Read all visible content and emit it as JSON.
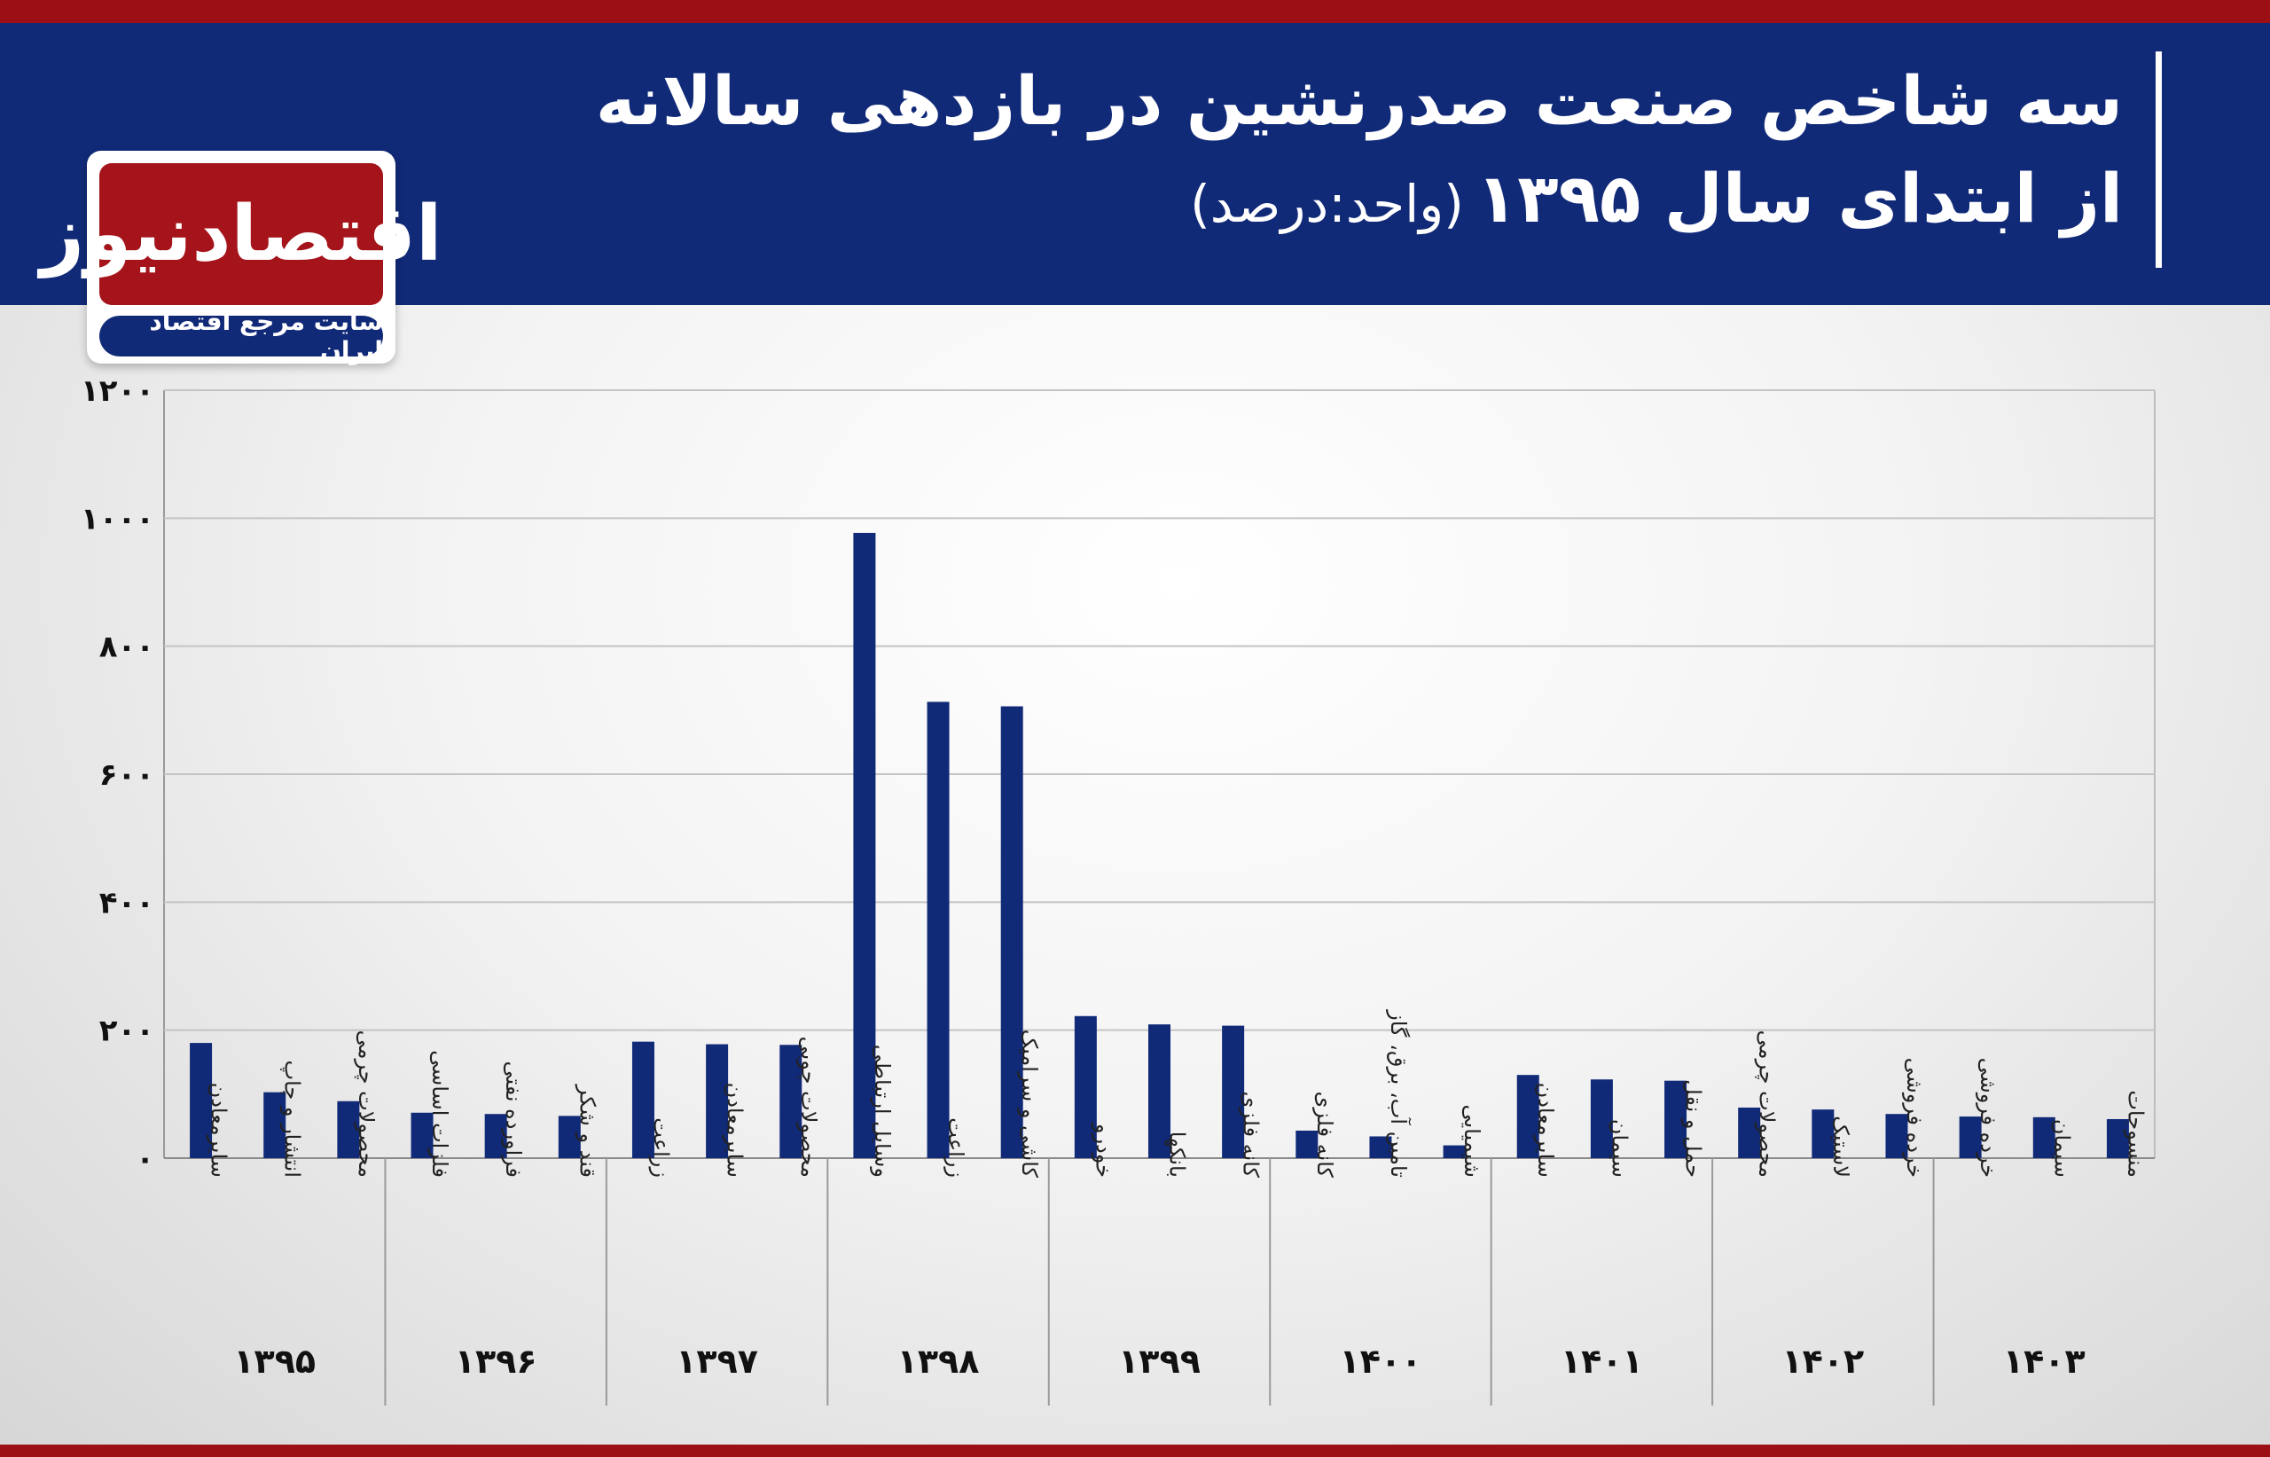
{
  "header": {
    "title_line1": "سه شاخص صنعت صدرنشین در بازدهی سالانه",
    "title_line2": "از ابتدای سال ۱۳۹۵",
    "unit": "(واحد:درصد)"
  },
  "logo": {
    "name": "اقتصادنیوز",
    "tagline": "سایت مرجع اقتصاد ایران"
  },
  "colors": {
    "bar": "#112a78",
    "header": "#112a78",
    "accent": "#9c0f15"
  },
  "chart_data": {
    "type": "bar",
    "ylim": [
      0,
      1200
    ],
    "yticks": [
      "۰",
      "۲۰۰",
      "۴۰۰",
      "۶۰۰",
      "۸۰۰",
      "۱۰۰۰",
      "۱۲۰۰"
    ],
    "grid": true,
    "groups": [
      {
        "year": "۱۳۹۵",
        "bars": [
          {
            "label": "سایرمعادن",
            "value": 180
          },
          {
            "label": "انتشار و چاپ",
            "value": 103
          },
          {
            "label": "محصولات چرمی",
            "value": 89
          }
        ]
      },
      {
        "year": "۱۳۹۶",
        "bars": [
          {
            "label": "فلزات اساسی",
            "value": 71
          },
          {
            "label": "فراورده نفتی",
            "value": 69
          },
          {
            "label": "قند و شکر",
            "value": 66
          }
        ]
      },
      {
        "year": "۱۳۹۷",
        "bars": [
          {
            "label": "زراعت",
            "value": 182
          },
          {
            "label": "سایرمعادن",
            "value": 178
          },
          {
            "label": "محصولات چوبی",
            "value": 177
          }
        ]
      },
      {
        "year": "۱۳۹۸",
        "bars": [
          {
            "label": "وسایل ارتباطی",
            "value": 977
          },
          {
            "label": "زراعت",
            "value": 713
          },
          {
            "label": "کاشی و سرامیک",
            "value": 706
          }
        ]
      },
      {
        "year": "۱۳۹۹",
        "bars": [
          {
            "label": "خودرو",
            "value": 222
          },
          {
            "label": "بانکها",
            "value": 209
          },
          {
            "label": "کانه فلزی",
            "value": 207
          }
        ]
      },
      {
        "year": "۱۴۰۰",
        "bars": [
          {
            "label": "کانه فلزی",
            "value": 43
          },
          {
            "label": "تامین آب، برق، گاز",
            "value": 34
          },
          {
            "label": "شیمیایی",
            "value": 20
          }
        ]
      },
      {
        "year": "۱۴۰۱",
        "bars": [
          {
            "label": "سایرمعادن",
            "value": 130
          },
          {
            "label": "سیمان",
            "value": 123
          },
          {
            "label": "حمل و نقل",
            "value": 121
          }
        ]
      },
      {
        "year": "۱۴۰۲",
        "bars": [
          {
            "label": "محصولات چرمی",
            "value": 79
          },
          {
            "label": "لاستیک",
            "value": 76
          },
          {
            "label": "خرده فروشی",
            "value": 69
          }
        ]
      },
      {
        "year": "۱۴۰۳",
        "bars": [
          {
            "label": "خرده فروشی",
            "value": 65
          },
          {
            "label": "سیمان",
            "value": 64
          },
          {
            "label": "منسوجات",
            "value": 61
          }
        ]
      }
    ]
  }
}
